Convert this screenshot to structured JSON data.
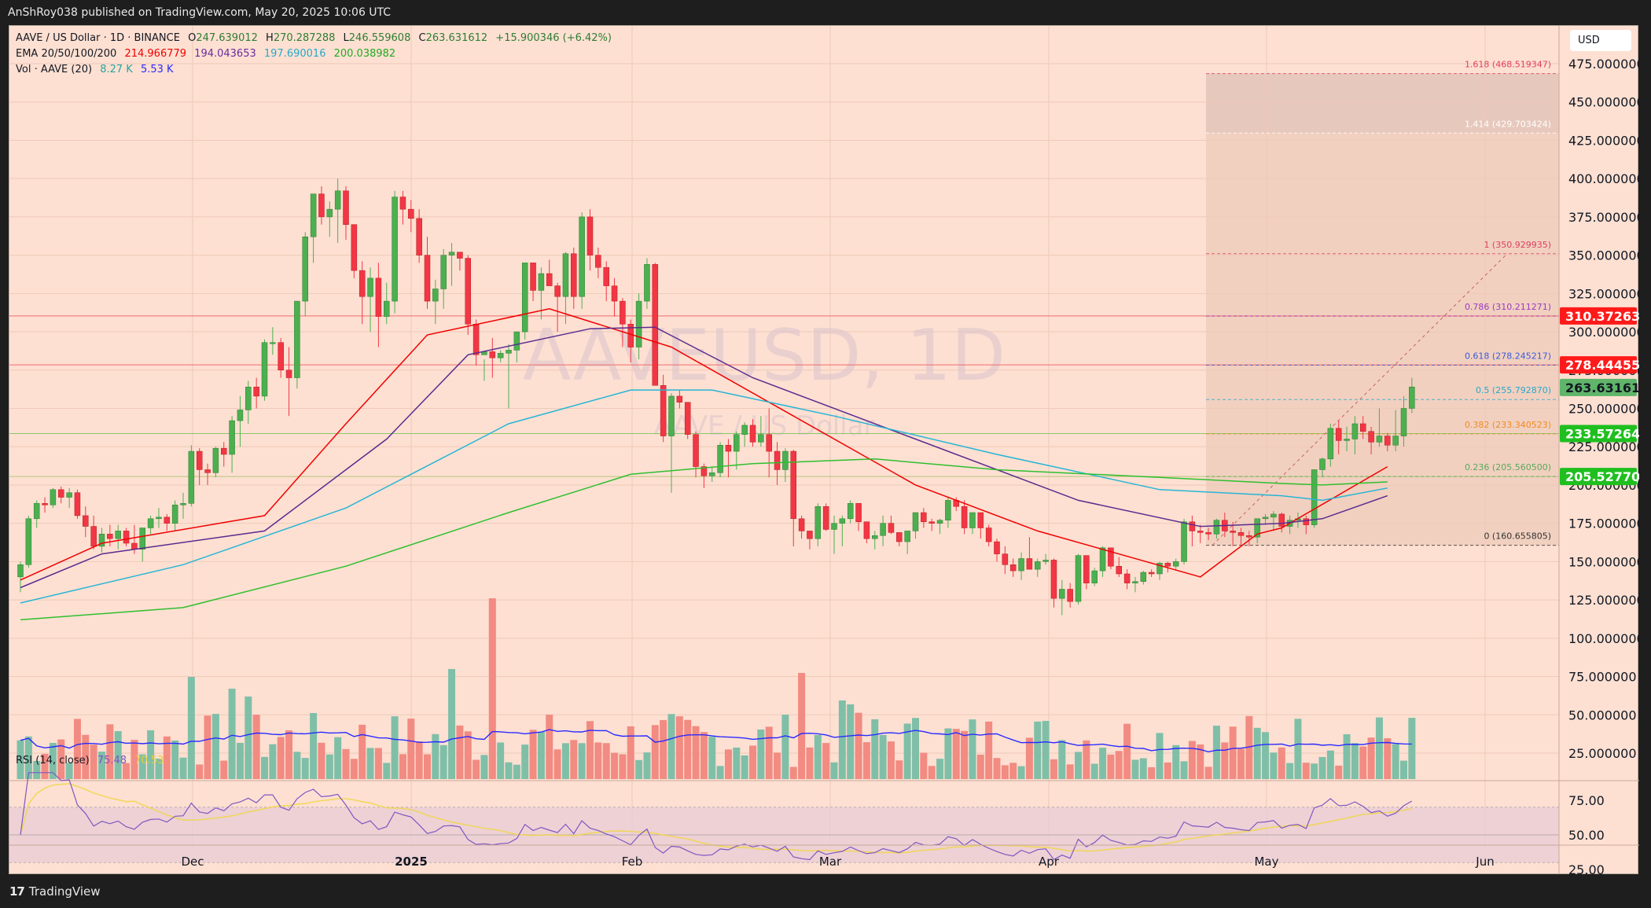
{
  "header": {
    "published": "AnShRoy038 published on TradingView.com, May 20, 2025 10:06 UTC"
  },
  "footer": {
    "brand": "TradingView",
    "logo_glyph": "17"
  },
  "legend": {
    "symbol": "AAVE / US Dollar · 1D · BINANCE",
    "open_label": "O",
    "open": "247.639012",
    "high_label": "H",
    "high": "270.287288",
    "low_label": "L",
    "low": "246.559608",
    "close_label": "C",
    "close": "263.631612",
    "change": "+15.900346 (+6.42%)",
    "ema_label": "EMA 20/50/100/200",
    "ema20": "214.966779",
    "ema50": "194.043653",
    "ema100": "197.690016",
    "ema200": "200.038982",
    "vol_label": "Vol · AAVE (20)",
    "vol": "8.27 K",
    "vol_ma": "5.53 K",
    "rsi_label": "RSI (14, close)",
    "rsi": "75.48",
    "rsi_ma": "70.53"
  },
  "watermark": {
    "main": "AAVEUSD, 1D",
    "sub": "AAVE / US Dollar"
  },
  "currency_button": "USD",
  "colors": {
    "background": "#fde0d2",
    "up": "#4caf50",
    "down": "#f23645",
    "vol_up": "#7fbfa8",
    "vol_down": "#f28b82",
    "ema20": "#f20000",
    "ema50": "#5b2c8f",
    "ema100": "#27b5d6",
    "ema200": "#2fbf2f",
    "vol_ma": "#2a2aff",
    "rsi": "#7e57c2",
    "rsi_ma": "#f0d64a"
  },
  "price_axis": {
    "ticks": [
      "475.000000",
      "450.000000",
      "425.000000",
      "400.000000",
      "375.000000",
      "350.000000",
      "325.000000",
      "300.000000",
      "275.000000",
      "250.000000",
      "225.000000",
      "200.000000",
      "175.000000",
      "150.000000",
      "125.000000",
      "100.000000",
      "75.000000",
      "50.000000",
      "25.000000"
    ],
    "labels": [
      {
        "value": "310.372637",
        "bg": "#ff1a1a",
        "fg": "#ffffff"
      },
      {
        "value": "278.444552",
        "bg": "#ff1a1a",
        "fg": "#ffffff"
      },
      {
        "value": "263.631612",
        "bg": "#5fb56a",
        "fg": "#131722"
      },
      {
        "value": "233.572648",
        "bg": "#1fbf1f",
        "fg": "#ffffff"
      },
      {
        "value": "205.527709",
        "bg": "#1fbf1f",
        "fg": "#ffffff"
      }
    ]
  },
  "rsi_axis": {
    "ticks": [
      "75.00",
      "50.00",
      "25.00"
    ]
  },
  "time_axis": {
    "ticks": [
      "Dec",
      "2025",
      "Feb",
      "Mar",
      "Apr",
      "May",
      "Jun"
    ]
  },
  "fib_levels": [
    {
      "ratio": "1.618",
      "price": "468.519347",
      "color": "#e0405a"
    },
    {
      "ratio": "1.414",
      "price": "429.703424",
      "color": "#ffffff"
    },
    {
      "ratio": "1",
      "price": "350.929935",
      "color": "#e0405a"
    },
    {
      "ratio": "0.786",
      "price": "310.211271",
      "color": "#9b3bbf"
    },
    {
      "ratio": "0.618",
      "price": "278.245217",
      "color": "#3a5bd9"
    },
    {
      "ratio": "0.5",
      "price": "255.792870",
      "color": "#27a9c9"
    },
    {
      "ratio": "0.382",
      "price": "233.340523",
      "color": "#f08a24"
    },
    {
      "ratio": "0.236",
      "price": "205.560500",
      "color": "#5aa85a"
    },
    {
      "ratio": "0",
      "price": "160.655805",
      "color": "#333333"
    }
  ],
  "horizontal_lines": [
    {
      "price": 310.37,
      "color": "#f26b6b"
    },
    {
      "price": 278.44,
      "color": "#f26b6b"
    },
    {
      "price": 233.57,
      "color": "#8cc86b"
    },
    {
      "price": 205.53,
      "color": "#b7c47a"
    }
  ],
  "chart_data": {
    "type": "candlestick",
    "title": "AAVE / US Dollar · 1D · BINANCE",
    "xlabel": "",
    "ylabel": "USD",
    "ylim": [
      10,
      485
    ],
    "x_range": [
      "2024-11-07",
      "2025-06-20"
    ],
    "ohlc_note": "approximate daily candles read from chart",
    "candles": [
      [
        140,
        150,
        130,
        148
      ],
      [
        148,
        180,
        146,
        178
      ],
      [
        178,
        190,
        172,
        188
      ],
      [
        188,
        192,
        182,
        187
      ],
      [
        187,
        198,
        185,
        197
      ],
      [
        197,
        199,
        188,
        192
      ],
      [
        192,
        198,
        185,
        195
      ],
      [
        195,
        197,
        178,
        180
      ],
      [
        180,
        186,
        166,
        173
      ],
      [
        173,
        180,
        158,
        160
      ],
      [
        160,
        172,
        156,
        168
      ],
      [
        168,
        174,
        160,
        165
      ],
      [
        165,
        174,
        158,
        170
      ],
      [
        170,
        172,
        160,
        162
      ],
      [
        162,
        174,
        155,
        158
      ],
      [
        158,
        172,
        150,
        172
      ],
      [
        172,
        180,
        168,
        178
      ],
      [
        178,
        185,
        172,
        179
      ],
      [
        179,
        181,
        170,
        175
      ],
      [
        175,
        190,
        170,
        187
      ],
      [
        187,
        195,
        178,
        188
      ],
      [
        188,
        226,
        186,
        222
      ],
      [
        222,
        224,
        200,
        210
      ],
      [
        210,
        214,
        200,
        208
      ],
      [
        208,
        225,
        205,
        224
      ],
      [
        224,
        228,
        212,
        220
      ],
      [
        220,
        245,
        208,
        242
      ],
      [
        242,
        258,
        225,
        249
      ],
      [
        249,
        268,
        240,
        264
      ],
      [
        264,
        270,
        250,
        258
      ],
      [
        258,
        295,
        255,
        293
      ],
      [
        293,
        303,
        285,
        293
      ],
      [
        293,
        296,
        270,
        275
      ],
      [
        275,
        290,
        245,
        270
      ],
      [
        270,
        320,
        263,
        320
      ],
      [
        320,
        365,
        310,
        362
      ],
      [
        362,
        388,
        345,
        390
      ],
      [
        390,
        395,
        370,
        375
      ],
      [
        375,
        385,
        362,
        380
      ],
      [
        380,
        400,
        358,
        392
      ],
      [
        392,
        395,
        360,
        370
      ],
      [
        370,
        366,
        335,
        340
      ],
      [
        340,
        346,
        305,
        323
      ],
      [
        323,
        342,
        300,
        335
      ],
      [
        335,
        345,
        290,
        310
      ],
      [
        310,
        332,
        305,
        320
      ],
      [
        320,
        392,
        312,
        388
      ],
      [
        388,
        392,
        370,
        380
      ],
      [
        380,
        386,
        365,
        374
      ],
      [
        374,
        380,
        345,
        350
      ],
      [
        350,
        362,
        315,
        320
      ],
      [
        320,
        334,
        305,
        328
      ],
      [
        328,
        354,
        315,
        350
      ],
      [
        350,
        358,
        330,
        352
      ],
      [
        352,
        352,
        340,
        348
      ],
      [
        348,
        350,
        298,
        305
      ],
      [
        305,
        308,
        278,
        285
      ],
      [
        285,
        282,
        268,
        287
      ],
      [
        287,
        296,
        270,
        283
      ],
      [
        283,
        288,
        280,
        286
      ],
      [
        286,
        292,
        250,
        288
      ],
      [
        288,
        300,
        280,
        300
      ],
      [
        300,
        330,
        295,
        345
      ],
      [
        345,
        343,
        320,
        327
      ],
      [
        327,
        342,
        308,
        338
      ],
      [
        338,
        347,
        330,
        330
      ],
      [
        330,
        332,
        300,
        323
      ],
      [
        323,
        352,
        305,
        351
      ],
      [
        351,
        355,
        315,
        323
      ],
      [
        323,
        378,
        315,
        375
      ],
      [
        375,
        380,
        340,
        350
      ],
      [
        350,
        355,
        335,
        342
      ],
      [
        342,
        346,
        320,
        330
      ],
      [
        330,
        335,
        310,
        320
      ],
      [
        320,
        322,
        290,
        305
      ],
      [
        305,
        308,
        280,
        290
      ],
      [
        290,
        325,
        282,
        320
      ],
      [
        320,
        348,
        315,
        344
      ],
      [
        344,
        345,
        265,
        265
      ],
      [
        265,
        272,
        228,
        232
      ],
      [
        232,
        260,
        195,
        258
      ],
      [
        258,
        262,
        250,
        254
      ],
      [
        254,
        252,
        230,
        233
      ],
      [
        233,
        235,
        205,
        212
      ],
      [
        212,
        214,
        198,
        206
      ],
      [
        206,
        212,
        202,
        208
      ],
      [
        208,
        228,
        205,
        226
      ],
      [
        226,
        230,
        205,
        222
      ],
      [
        222,
        235,
        210,
        233
      ],
      [
        233,
        241,
        225,
        239
      ],
      [
        239,
        243,
        225,
        228
      ],
      [
        228,
        245,
        225,
        233
      ],
      [
        233,
        250,
        205,
        222
      ],
      [
        222,
        228,
        200,
        210
      ],
      [
        210,
        224,
        202,
        222
      ],
      [
        222,
        223,
        160,
        178
      ],
      [
        178,
        180,
        165,
        170
      ],
      [
        170,
        170,
        158,
        165
      ],
      [
        165,
        188,
        160,
        186
      ],
      [
        186,
        188,
        170,
        171
      ],
      [
        171,
        180,
        155,
        175
      ],
      [
        175,
        180,
        160,
        178
      ],
      [
        178,
        190,
        175,
        188
      ],
      [
        188,
        188,
        170,
        176
      ],
      [
        176,
        176,
        162,
        165
      ],
      [
        165,
        170,
        158,
        167
      ],
      [
        167,
        180,
        160,
        175
      ],
      [
        175,
        180,
        168,
        169
      ],
      [
        169,
        168,
        160,
        163
      ],
      [
        163,
        170,
        155,
        170
      ],
      [
        170,
        182,
        165,
        182
      ],
      [
        182,
        185,
        172,
        176
      ],
      [
        176,
        178,
        170,
        175
      ],
      [
        175,
        178,
        168,
        177
      ],
      [
        177,
        192,
        172,
        190
      ],
      [
        190,
        192,
        183,
        186
      ],
      [
        186,
        190,
        168,
        172
      ],
      [
        172,
        182,
        168,
        182
      ],
      [
        182,
        182,
        165,
        172
      ],
      [
        172,
        174,
        160,
        163
      ],
      [
        163,
        165,
        150,
        155
      ],
      [
        155,
        160,
        142,
        148
      ],
      [
        148,
        152,
        140,
        144
      ],
      [
        144,
        156,
        138,
        152
      ],
      [
        152,
        166,
        145,
        145
      ],
      [
        145,
        152,
        140,
        150
      ],
      [
        150,
        155,
        148,
        151
      ],
      [
        151,
        152,
        120,
        126
      ],
      [
        126,
        138,
        115,
        132
      ],
      [
        132,
        136,
        120,
        124
      ],
      [
        124,
        155,
        122,
        154
      ],
      [
        154,
        154,
        132,
        136
      ],
      [
        136,
        146,
        134,
        144
      ],
      [
        144,
        160,
        140,
        159
      ],
      [
        159,
        158,
        145,
        147
      ],
      [
        147,
        153,
        140,
        142
      ],
      [
        142,
        145,
        132,
        136
      ],
      [
        136,
        140,
        130,
        137
      ],
      [
        137,
        144,
        135,
        143
      ],
      [
        143,
        145,
        140,
        142
      ],
      [
        142,
        150,
        138,
        149
      ],
      [
        149,
        150,
        143,
        147
      ],
      [
        147,
        152,
        144,
        150
      ],
      [
        150,
        178,
        148,
        176
      ],
      [
        176,
        180,
        160,
        170
      ],
      [
        170,
        174,
        162,
        169
      ],
      [
        169,
        172,
        164,
        168
      ],
      [
        168,
        178,
        165,
        177
      ],
      [
        177,
        182,
        166,
        170
      ],
      [
        170,
        176,
        160,
        169
      ],
      [
        169,
        172,
        160,
        167
      ],
      [
        167,
        170,
        160,
        166
      ],
      [
        166,
        178,
        162,
        178
      ],
      [
        178,
        181,
        174,
        179
      ],
      [
        179,
        183,
        170,
        181
      ],
      [
        181,
        182,
        169,
        173
      ],
      [
        173,
        180,
        168,
        177
      ],
      [
        177,
        182,
        172,
        178
      ],
      [
        178,
        180,
        168,
        174
      ],
      [
        174,
        210,
        172,
        210
      ],
      [
        210,
        218,
        205,
        217
      ],
      [
        217,
        240,
        212,
        237
      ],
      [
        237,
        242,
        220,
        229
      ],
      [
        229,
        238,
        222,
        230
      ],
      [
        230,
        245,
        220,
        240
      ],
      [
        240,
        245,
        230,
        235
      ],
      [
        235,
        238,
        220,
        228
      ],
      [
        228,
        250,
        225,
        232
      ],
      [
        232,
        234,
        222,
        226
      ],
      [
        226,
        249,
        222,
        232
      ],
      [
        232,
        258,
        225,
        250
      ],
      [
        250,
        270,
        247,
        264
      ]
    ],
    "ema_series": {
      "ema20": [
        [
          0,
          138
        ],
        [
          10,
          162
        ],
        [
          30,
          180
        ],
        [
          40,
          240
        ],
        [
          50,
          298
        ],
        [
          65,
          315
        ],
        [
          80,
          290
        ],
        [
          95,
          245
        ],
        [
          110,
          200
        ],
        [
          125,
          170
        ],
        [
          145,
          140
        ],
        [
          152,
          168
        ],
        [
          155,
          172
        ],
        [
          168,
          212
        ]
      ],
      "ema50": [
        [
          0,
          133
        ],
        [
          10,
          155
        ],
        [
          30,
          170
        ],
        [
          45,
          230
        ],
        [
          55,
          285
        ],
        [
          70,
          302
        ],
        [
          78,
          303
        ],
        [
          90,
          270
        ],
        [
          110,
          230
        ],
        [
          130,
          190
        ],
        [
          145,
          173
        ],
        [
          155,
          175
        ],
        [
          160,
          178
        ],
        [
          168,
          193
        ]
      ],
      "ema100": [
        [
          0,
          123
        ],
        [
          20,
          148
        ],
        [
          40,
          185
        ],
        [
          60,
          240
        ],
        [
          75,
          262
        ],
        [
          85,
          262
        ],
        [
          100,
          245
        ],
        [
          120,
          220
        ],
        [
          140,
          197
        ],
        [
          155,
          193
        ],
        [
          160,
          190
        ],
        [
          168,
          198
        ]
      ],
      "ema200": [
        [
          0,
          112
        ],
        [
          20,
          120
        ],
        [
          40,
          147
        ],
        [
          60,
          182
        ],
        [
          75,
          207
        ],
        [
          90,
          214
        ],
        [
          105,
          217
        ],
        [
          120,
          210
        ],
        [
          140,
          205
        ],
        [
          155,
          201
        ],
        [
          160,
          200
        ],
        [
          168,
          202
        ]
      ]
    },
    "volume_ma_note": "20-period volume SMA shown in blue",
    "rsi": {
      "period": 14,
      "last": 75.48,
      "ma_last": 70.53,
      "overbought": 70,
      "oversold": 30
    },
    "fibonacci": {
      "levels": [
        [
          1.618,
          468.519347
        ],
        [
          1.414,
          429.703424
        ],
        [
          1,
          350.929935
        ],
        [
          0.786,
          310.211271
        ],
        [
          0.618,
          278.245217
        ],
        [
          0.5,
          255.79287
        ],
        [
          0.382,
          233.340523
        ],
        [
          0.236,
          205.5605
        ],
        [
          0,
          160.655805
        ]
      ]
    }
  }
}
